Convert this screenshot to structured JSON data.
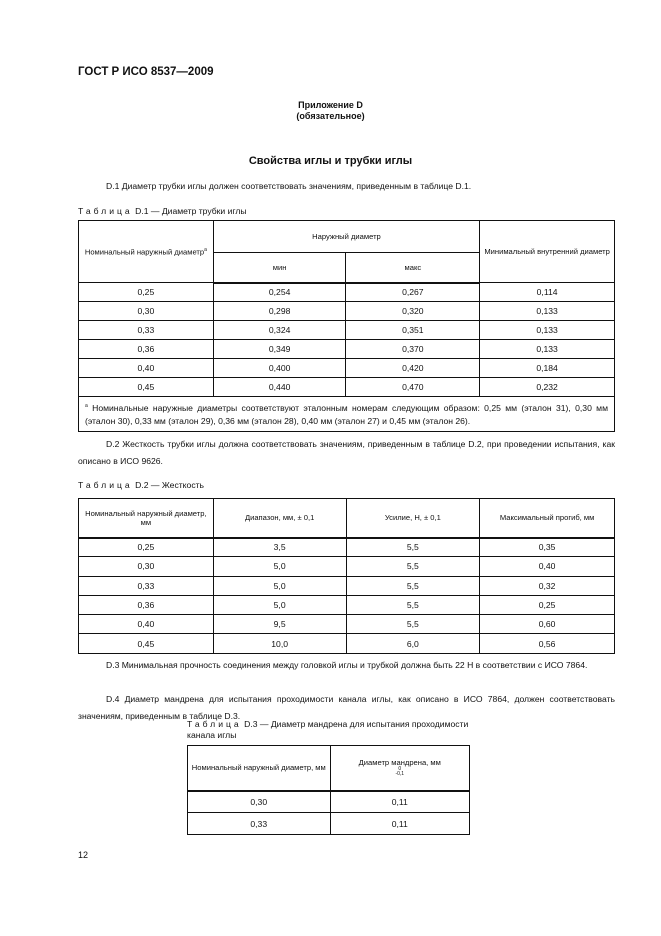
{
  "header": "ГОСТ Р ИСО 8537—2009",
  "annex": {
    "title": "Приложение D",
    "status": "(обязательное)"
  },
  "section_title": "Свойства иглы и трубки иглы",
  "p1": "D.1  Диаметр трубки иглы должен соответствовать значениям, приведенным в таблице D.1.",
  "t1": {
    "caption_prefix": "Таблица",
    "caption": "D.1 — Диаметр трубки иглы",
    "h_nom": "Номинальный наружный диаметр",
    "h_nom_sup": "a",
    "h_outer": "Наружный диаметр",
    "h_min": "мин",
    "h_max": "макс",
    "h_inner": "Минимальный внутренний диаметр",
    "rows": [
      [
        "0,25",
        "0,254",
        "0,267",
        "0,114"
      ],
      [
        "0,30",
        "0,298",
        "0,320",
        "0,133"
      ],
      [
        "0,33",
        "0,324",
        "0,351",
        "0,133"
      ],
      [
        "0,36",
        "0,349",
        "0,370",
        "0,133"
      ],
      [
        "0,40",
        "0,400",
        "0,420",
        "0,184"
      ],
      [
        "0,45",
        "0,440",
        "0,470",
        "0,232"
      ]
    ],
    "footnote_mark": "a",
    "footnote": "Номинальные наружные диаметры соответствуют эталонным номерам следующим образом: 0,25 мм (эталон 31), 0,30 мм (эталон 30), 0,33 мм (эталон 29), 0,36 мм (эталон 28), 0,40 мм (эталон 27) и 0,45 мм (эталон 26)."
  },
  "p2": "D.2  Жесткость трубки иглы должна соответствовать значениям, приведенным в таблице D.2, при проведении испытания, как описано в ИСО 9626.",
  "t2": {
    "caption_prefix": "Таблица",
    "caption": "D.2 — Жесткость",
    "headers": [
      "Номинальный наружный диаметр, мм",
      "Диапазон, мм,  ± 0,1",
      "Усилие, Н, ± 0,1",
      "Максимальный прогиб, мм"
    ],
    "rows": [
      [
        "0,25",
        "3,5",
        "5,5",
        "0,35"
      ],
      [
        "0,30",
        "5,0",
        "5,5",
        "0,40"
      ],
      [
        "0,33",
        "5,0",
        "5,5",
        "0,32"
      ],
      [
        "0,36",
        "5,0",
        "5,5",
        "0,25"
      ],
      [
        "0,40",
        "9,5",
        "5,5",
        "0,60"
      ],
      [
        "0,45",
        "10,0",
        "6,0",
        "0,56"
      ]
    ]
  },
  "p3": "D.3  Минимальная прочность соединения между головкой иглы и трубкой должна быть 22 Н в соответствии с ИСО 7864.",
  "p4": "D.4  Диаметр мандрена для испытания проходимости канала иглы, как описано в ИСО 7864, должен соответствовать значениям, приведенным в таблице D.3.",
  "t3": {
    "caption_prefix": "Таблица",
    "caption": "D.3 — Диаметр мандрена для испытания проходимости канала иглы",
    "h_nom": "Номинальный наружный диаметр, мм",
    "h_mand": "Диаметр мандрена, мм",
    "tol_upper": "0",
    "tol_lower": "-0,1",
    "rows": [
      [
        "0,30",
        "0,11"
      ],
      [
        "0,33",
        "0,11"
      ]
    ]
  },
  "page_number": "12"
}
